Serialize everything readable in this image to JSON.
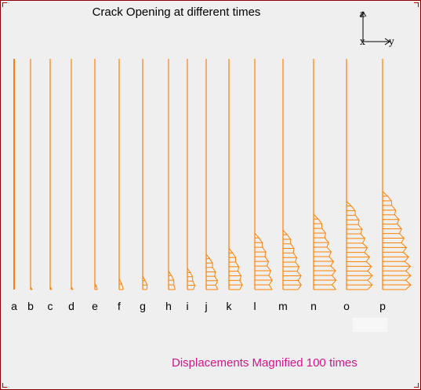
{
  "title": "Crack Opening at different times",
  "footer": "Displacements Magnified 100 times",
  "axes": {
    "z": "z",
    "x": "x",
    "y": "y"
  },
  "crack_color": "#ff8000",
  "footer_color": "#d4148a",
  "panels": [
    {
      "label": "a",
      "opening": 0
    },
    {
      "label": "b",
      "opening": 0.05
    },
    {
      "label": "c",
      "opening": 0.08
    },
    {
      "label": "d",
      "opening": 0.1
    },
    {
      "label": "e",
      "opening": 0.3
    },
    {
      "label": "f",
      "opening": 0.5
    },
    {
      "label": "g",
      "opening": 0.6
    },
    {
      "label": "h",
      "opening": 0.8
    },
    {
      "label": "i",
      "opening": 0.9
    },
    {
      "label": "j",
      "opening": 1.4
    },
    {
      "label": "k",
      "opening": 1.6
    },
    {
      "label": "l",
      "opening": 2.1
    },
    {
      "label": "m",
      "opening": 2.2
    },
    {
      "label": "n",
      "opening": 2.7
    },
    {
      "label": "o",
      "opening": 3.1
    },
    {
      "label": "p",
      "opening": 3.4
    }
  ]
}
